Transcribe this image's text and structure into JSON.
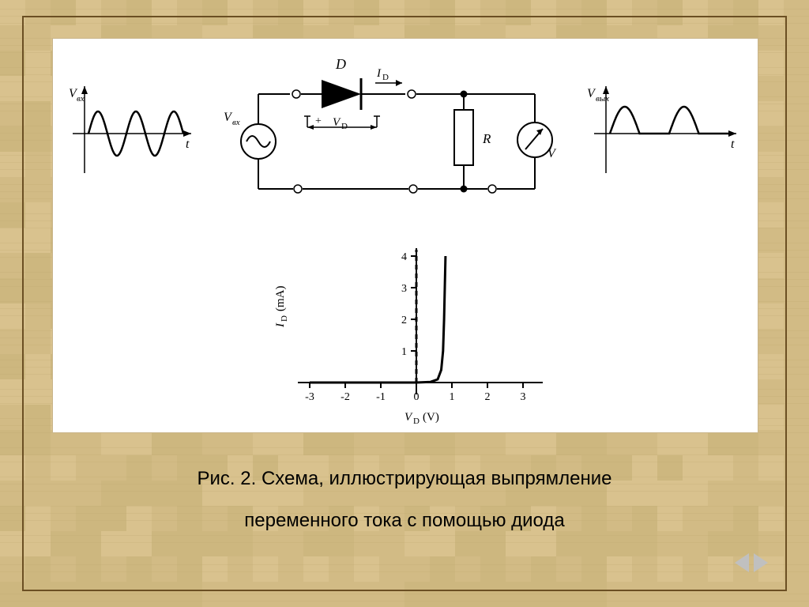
{
  "background": {
    "texture_colors": [
      "#d9c28e",
      "#e6d3a3",
      "#cdb77f",
      "#e0cb95",
      "#d2bb85",
      "#dbc690"
    ],
    "frame_border_color": "#6b4f23"
  },
  "panel": {
    "bg": "#ffffff",
    "border": "#c9b58a"
  },
  "caption": {
    "line1": "Рис. 2. Схема, иллюстрирующая выпрямление",
    "line2": "переменного тока с помощью диода",
    "fontsize": 24,
    "color": "#000000"
  },
  "nav": {
    "arrow_color": "#c0c0c0"
  },
  "top_diagram": {
    "input_wave": {
      "y_label": "V_вх",
      "x_label": "t",
      "stroke": "#000000",
      "axis_stroke": "#000000",
      "periods": 2.5
    },
    "circuit": {
      "source_label": "V_вх",
      "diode_label": "D",
      "diode_voltage_label": "V_D",
      "diode_voltage_sign": "+",
      "diode_current_label": "I_D",
      "resistor_label": "R",
      "meter_label": "V",
      "wire_stroke": "#000000",
      "wire_width": 2,
      "terminal_radius": 4,
      "node_radius": 4
    },
    "output_wave": {
      "y_label": "V_вых",
      "x_label": "t",
      "stroke": "#000000",
      "periods": 2
    }
  },
  "iv_chart": {
    "type": "line",
    "x_label": "V_D (V)",
    "y_label": "I_D (mA)",
    "x_ticks": [
      -3,
      -2,
      -1,
      0,
      1,
      2,
      3
    ],
    "y_ticks": [
      1,
      2,
      3,
      4
    ],
    "xlim": [
      -3.2,
      3.2
    ],
    "ylim": [
      -0.3,
      4.2
    ],
    "curve_points": [
      [
        -3.0,
        0.0
      ],
      [
        -2.0,
        0.0
      ],
      [
        -1.0,
        0.0
      ],
      [
        0.0,
        0.0
      ],
      [
        0.4,
        0.02
      ],
      [
        0.6,
        0.1
      ],
      [
        0.7,
        0.4
      ],
      [
        0.75,
        1.0
      ],
      [
        0.78,
        2.0
      ],
      [
        0.8,
        3.0
      ],
      [
        0.82,
        4.0
      ]
    ],
    "dashed_vertical_x": 0.0,
    "axis_stroke": "#000000",
    "curve_stroke": "#000000",
    "curve_width": 3,
    "label_fontsize": 15,
    "tick_fontsize": 14,
    "dash_pattern": "6,5"
  }
}
